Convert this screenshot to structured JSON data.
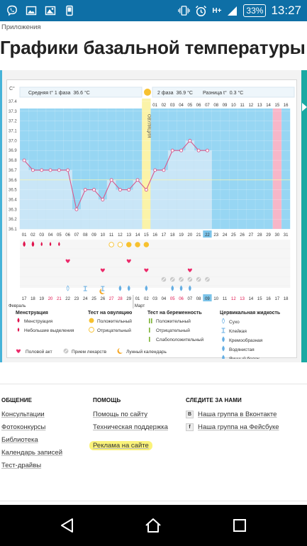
{
  "status_bar": {
    "battery": "33%",
    "time": "13:27",
    "icons_left": [
      "viber-icon",
      "image-icon",
      "gallery-icon",
      "android-icon"
    ],
    "icons_right": [
      "vibrate-icon",
      "alarm-icon",
      "network-icon",
      "signal-icon"
    ],
    "network_label": "H+"
  },
  "header": {
    "breadcrumb": "Приложения",
    "title": "Графики базальной температуры"
  },
  "chart": {
    "colors": {
      "bg_sky": "#97d6f3",
      "bar": "#c9e6f7",
      "ovulation": "#fbf3a8",
      "period": "#f7b6c8",
      "line": "#d8578a",
      "point": "#ffffff",
      "red": "#e0124c",
      "pink": "#ec2a6a",
      "yellow": "#f7c12f",
      "green": "#7cb233",
      "blue": "#65aee3"
    },
    "unit_label": "C°",
    "phase1_label": "Средняя t° 1 фаза",
    "phase1_value": "36.6 °C",
    "ovulation_label": "ОВУЛЯЦИЯ",
    "phase2_label": "2 фаза",
    "phase2_value": "36.9 °C",
    "diff_label": "Разница t°",
    "diff_value": "0.3 °C",
    "month1": "Февраль",
    "month2": "Март",
    "legend": {
      "menstruation": {
        "title": "Менструация",
        "items": [
          "Менструация",
          "Небольшие выделения"
        ]
      },
      "ovulation_test": {
        "title": "Тест на овуляцию",
        "items": [
          "Положительный",
          "Отрицательный"
        ]
      },
      "pregnancy_test": {
        "title": "Тест на беременность",
        "items": [
          "Положительный",
          "Отрицательный",
          "Слабоположительный"
        ]
      },
      "cervical": {
        "title": "Цервикальная жидкость",
        "items": [
          "Сухо",
          "Клейкая",
          "Кремообразная",
          "Водянистая",
          "Яичный белок"
        ]
      },
      "bottom": [
        "Половой акт",
        "Прием лекарств",
        "Лунный календарь"
      ]
    }
  },
  "chart_data": {
    "type": "line",
    "ylabel": "C°",
    "ylim": [
      36.1,
      37.4
    ],
    "y_ticks": [
      "36.1",
      "36.2",
      "36.3",
      "36.4",
      "36.5",
      "36.6",
      "36.7",
      "36.8",
      "36.9",
      "37.0",
      "37.1",
      "37.2",
      "37.3",
      "37.4"
    ],
    "cycle_days": [
      "01",
      "02",
      "03",
      "04",
      "05",
      "06",
      "07",
      "08",
      "09",
      "10",
      "11",
      "12",
      "13",
      "14",
      "15",
      "16",
      "17",
      "18",
      "19",
      "20",
      "21",
      "22",
      "23",
      "24",
      "25",
      "26",
      "27",
      "28",
      "29",
      "30",
      "31"
    ],
    "top_phase2_days": [
      "01",
      "02",
      "03",
      "04",
      "05",
      "06",
      "07",
      "08",
      "09",
      "10",
      "11",
      "12",
      "13",
      "14",
      "15",
      "16"
    ],
    "dates": [
      "17",
      "18",
      "19",
      "20",
      "21",
      "22",
      "23",
      "24",
      "25",
      "26",
      "27",
      "28",
      "29",
      "01",
      "02",
      "03",
      "04",
      "05",
      "06",
      "07",
      "08",
      "09",
      "10",
      "11",
      "12",
      "13",
      "14",
      "15",
      "16",
      "17",
      "18"
    ],
    "temperatures": [
      36.8,
      36.7,
      36.7,
      36.7,
      36.7,
      36.7,
      36.3,
      36.5,
      36.5,
      36.4,
      36.6,
      36.5,
      36.5,
      36.6,
      36.5,
      36.7,
      36.7,
      36.9,
      36.9,
      37.0,
      36.9,
      36.9
    ],
    "coverline": 36.6,
    "ovulation_day": 15,
    "period_day": 31,
    "highlighted_day": "22",
    "highlighted_date": "09"
  },
  "footer": {
    "col1": {
      "heading": "ОБЩЕНИЕ",
      "links": [
        "Консультации",
        "Фотоконкурсы",
        "Библиотека",
        "Календарь записей",
        "Тест-драйвы"
      ]
    },
    "col2": {
      "heading": "ПОМОЩЬ",
      "links": [
        "Помощь по сайту",
        "Техническая поддержка",
        "Реклама на сайте"
      ]
    },
    "col3": {
      "heading": "СЛЕДИТЕ ЗА НАМИ",
      "links": [
        {
          "icon": "В",
          "label": "Наша группа в Вконтакте"
        },
        {
          "icon": "f",
          "label": "Наша группа на Фейсбуке"
        }
      ]
    }
  },
  "nav": [
    "back-icon",
    "home-icon",
    "recents-icon"
  ]
}
